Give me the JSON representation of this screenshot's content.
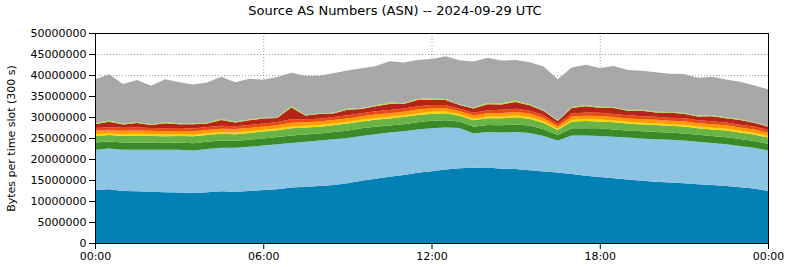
{
  "chart_data": {
    "type": "area",
    "title": "Source AS Numbers (ASN) -- 2024-09-29 UTC",
    "y_label": "Bytes per time slot (300 s)",
    "stacked": true,
    "grid": true,
    "x": [
      0,
      0.5,
      1,
      1.5,
      2,
      2.5,
      3,
      3.5,
      4,
      4.5,
      5,
      5.5,
      6,
      6.5,
      7,
      7.5,
      8,
      8.5,
      9,
      9.5,
      10,
      10.5,
      11,
      11.5,
      12,
      12.5,
      13,
      13.5,
      14,
      14.5,
      15,
      15.5,
      16,
      16.5,
      17,
      17.5,
      18,
      18.5,
      19,
      19.5,
      20,
      20.5,
      21,
      21.5,
      22,
      22.5,
      23,
      23.5,
      24
    ],
    "xlim": [
      0,
      24
    ],
    "xticks": [
      {
        "value": 0,
        "label": "00:00"
      },
      {
        "value": 6,
        "label": "06:00"
      },
      {
        "value": 12,
        "label": "12:00"
      },
      {
        "value": 18,
        "label": "18:00"
      },
      {
        "value": 24,
        "label": "00:00"
      }
    ],
    "ylim": [
      0,
      50000000
    ],
    "yticks": [
      0,
      5000000,
      10000000,
      15000000,
      20000000,
      25000000,
      30000000,
      35000000,
      40000000,
      45000000,
      50000000
    ],
    "series": [
      {
        "color": "#0080b4",
        "values": [
          12600000,
          12800000,
          12400000,
          12300000,
          12200000,
          12100000,
          12000000,
          11900000,
          12100000,
          12300000,
          12200000,
          12400000,
          12600000,
          12800000,
          13200000,
          13400000,
          13600000,
          13800000,
          14200000,
          14800000,
          15300000,
          15800000,
          16200000,
          16700000,
          17100000,
          17500000,
          17800000,
          17900000,
          18000000,
          17700000,
          17600000,
          17300000,
          17000000,
          16800000,
          16400000,
          16000000,
          15700000,
          15400000,
          15100000,
          14800000,
          14600000,
          14400000,
          14200000,
          14000000,
          13800000,
          13600000,
          13300000,
          13000000,
          12400000
        ]
      },
      {
        "color": "#8cc4e4",
        "values": [
          9600000,
          9700000,
          9800000,
          9900000,
          10000000,
          10100000,
          10200000,
          10100000,
          10300000,
          10400000,
          10500000,
          10500000,
          10600000,
          10700000,
          10600000,
          10700000,
          10800000,
          10900000,
          10800000,
          10700000,
          10600000,
          10500000,
          10400000,
          10300000,
          10200000,
          10000000,
          9600000,
          8200000,
          8400000,
          8600000,
          8800000,
          8900000,
          8500000,
          7600000,
          9200000,
          9600000,
          9800000,
          9900000,
          10000000,
          10100000,
          10100000,
          10200000,
          10200000,
          10100000,
          10000000,
          9900000,
          9800000,
          9700000,
          9600000
        ]
      },
      {
        "color": "#3a8a2a",
        "values": [
          1700000,
          1650000,
          1700000,
          1750000,
          1700000,
          1650000,
          1700000,
          1750000,
          1700000,
          1700000,
          1650000,
          1700000,
          1700000,
          1750000,
          1800000,
          1750000,
          1700000,
          1700000,
          1750000,
          1800000,
          1750000,
          1700000,
          1700000,
          1750000,
          1800000,
          1750000,
          1500000,
          1600000,
          1700000,
          1750000,
          1800000,
          1750000,
          1600000,
          1300000,
          1700000,
          1750000,
          1800000,
          1750000,
          1700000,
          1700000,
          1750000,
          1700000,
          1700000,
          1650000,
          1700000,
          1700000,
          1650000,
          1600000,
          1600000
        ]
      },
      {
        "color": "#6ab446",
        "values": [
          1600000,
          1550000,
          1600000,
          1650000,
          1600000,
          1550000,
          1600000,
          1650000,
          1600000,
          1600000,
          1550000,
          1600000,
          1650000,
          1600000,
          1700000,
          1650000,
          1600000,
          1650000,
          1700000,
          1650000,
          1700000,
          1650000,
          1700000,
          1750000,
          1700000,
          1650000,
          1400000,
          1500000,
          1600000,
          1650000,
          1700000,
          1650000,
          1500000,
          1200000,
          1600000,
          1700000,
          1650000,
          1700000,
          1650000,
          1600000,
          1650000,
          1600000,
          1650000,
          1600000,
          1550000,
          1600000,
          1550000,
          1550000,
          1500000
        ]
      },
      {
        "color": "#ffd400",
        "values": [
          400000,
          380000,
          420000,
          400000,
          390000,
          410000,
          400000,
          380000,
          420000,
          400000,
          410000,
          400000,
          390000,
          420000,
          450000,
          410000,
          400000,
          420000,
          410000,
          400000,
          420000,
          430000,
          410000,
          420000,
          430000,
          400000,
          350000,
          380000,
          400000,
          420000,
          430000,
          410000,
          380000,
          300000,
          400000,
          420000,
          430000,
          410000,
          400000,
          420000,
          410000,
          400000,
          410000,
          390000,
          400000,
          410000,
          400000,
          390000,
          380000
        ]
      },
      {
        "color": "#ff9a00",
        "values": [
          800000,
          780000,
          820000,
          790000,
          810000,
          800000,
          770000,
          830000,
          800000,
          790000,
          820000,
          800000,
          810000,
          790000,
          900000,
          820000,
          800000,
          830000,
          810000,
          820000,
          840000,
          830000,
          850000,
          860000,
          840000,
          820000,
          700000,
          760000,
          800000,
          830000,
          850000,
          820000,
          760000,
          600000,
          800000,
          830000,
          850000,
          820000,
          810000,
          830000,
          820000,
          800000,
          810000,
          790000,
          800000,
          810000,
          790000,
          780000,
          770000
        ]
      },
      {
        "color": "#e84a10",
        "values": [
          700000,
          720000,
          680000,
          710000,
          690000,
          730000,
          700000,
          680000,
          720000,
          700000,
          690000,
          710000,
          700000,
          730000,
          800000,
          720000,
          700000,
          720000,
          740000,
          720000,
          750000,
          760000,
          740000,
          770000,
          760000,
          740000,
          600000,
          680000,
          720000,
          750000,
          770000,
          740000,
          680000,
          550000,
          720000,
          750000,
          760000,
          740000,
          730000,
          740000,
          720000,
          710000,
          720000,
          700000,
          710000,
          700000,
          690000,
          700000,
          680000
        ]
      },
      {
        "color": "#b42418",
        "values": [
          900000,
          1300000,
          800000,
          1100000,
          700000,
          1200000,
          900000,
          1000000,
          800000,
          1400000,
          900000,
          1100000,
          1200000,
          1000000,
          2800000,
          900000,
          1100000,
          800000,
          1300000,
          1000000,
          1200000,
          1400000,
          1100000,
          1500000,
          1300000,
          1200000,
          900000,
          1000000,
          1400000,
          1300000,
          1600000,
          1200000,
          1000000,
          700000,
          1300000,
          1500000,
          1200000,
          1400000,
          1100000,
          1300000,
          1000000,
          1200000,
          1100000,
          900000,
          1200000,
          1000000,
          1100000,
          900000,
          800000
        ]
      },
      {
        "color": "#a8e040",
        "values": [
          200000,
          300000,
          150000,
          200000,
          150000,
          250000,
          200000,
          150000,
          200000,
          300000,
          150000,
          200000,
          200000,
          150000,
          300000,
          200000,
          150000,
          200000,
          250000,
          200000,
          200000,
          400000,
          200000,
          300000,
          250000,
          200000,
          150000,
          200000,
          300000,
          250000,
          400000,
          250000,
          200000,
          150000,
          250000,
          300000,
          250000,
          200000,
          200000,
          250000,
          200000,
          200000,
          150000,
          200000,
          250000,
          200000,
          200000,
          150000,
          150000
        ]
      },
      {
        "color": "#a8a8a8",
        "values": [
          10500000,
          11000000,
          9500000,
          10000000,
          9200000,
          10200000,
          9800000,
          9300000,
          9600000,
          10000000,
          9400000,
          9700000,
          9000000,
          9600000,
          8000000,
          9300000,
          9000000,
          9400000,
          9100000,
          9500000,
          9300000,
          9800000,
          9700000,
          9200000,
          9400000,
          10200000,
          10500000,
          11000000,
          10800000,
          10200000,
          9600000,
          10000000,
          10400000,
          9800000,
          9400000,
          9600000,
          9200000,
          9800000,
          9500000,
          9300000,
          9400000,
          9100000,
          9300000,
          9000000,
          9200000,
          9000000,
          8900000,
          8800000,
          8700000
        ]
      }
    ]
  }
}
